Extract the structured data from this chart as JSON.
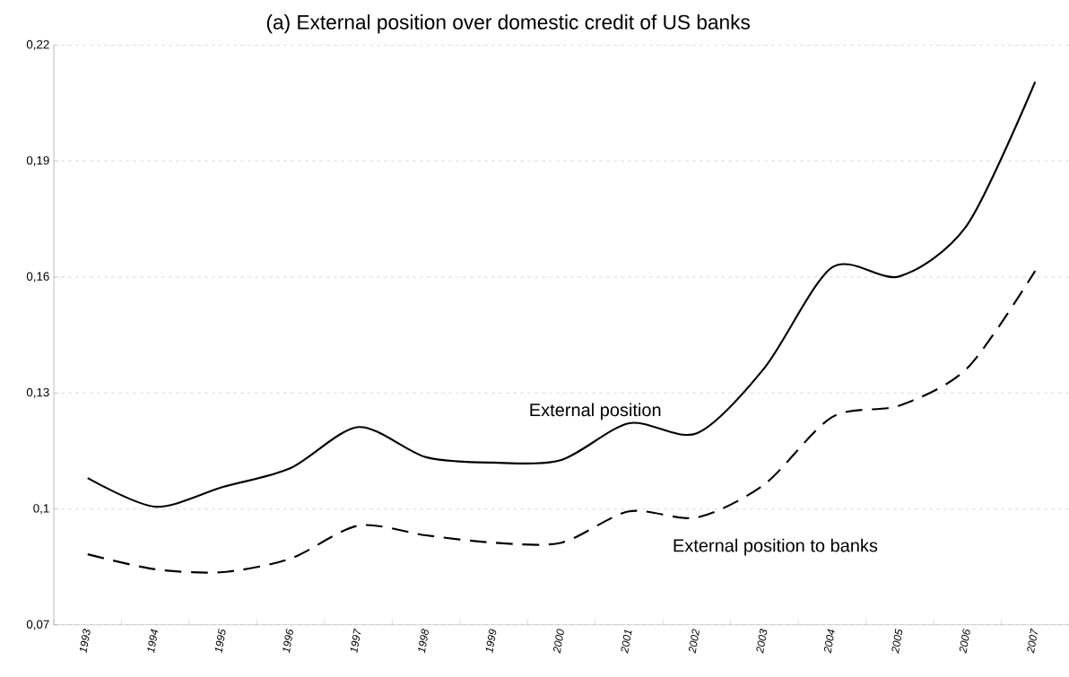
{
  "chart_data": {
    "type": "line",
    "title": "(a) External position over domestic credit of US banks",
    "categories": [
      "1993",
      "1994",
      "1995",
      "1996",
      "1997",
      "1998",
      "1999",
      "2000",
      "2001",
      "2002",
      "2003",
      "2004",
      "2005",
      "2006",
      "2007"
    ],
    "series": [
      {
        "name": "External position",
        "color": "#000000",
        "line_style": "solid",
        "values": [
          0.108,
          0.1006,
          0.1057,
          0.1106,
          0.1212,
          0.1134,
          0.112,
          0.1127,
          0.1222,
          0.1196,
          0.1365,
          0.1625,
          0.1602,
          0.1736,
          0.2105
        ]
      },
      {
        "name": "External position to banks",
        "color": "#000000",
        "line_style": "dashed",
        "values": [
          0.0883,
          0.0844,
          0.0837,
          0.0872,
          0.0957,
          0.0932,
          0.0913,
          0.0913,
          0.0994,
          0.0978,
          0.1064,
          0.1238,
          0.1268,
          0.1365,
          0.1616
        ]
      }
    ],
    "ylim": [
      0.07,
      0.22
    ],
    "yticks": [
      {
        "value": 0.07,
        "label": "0,07"
      },
      {
        "value": 0.1,
        "label": "0,1"
      },
      {
        "value": 0.13,
        "label": "0,13"
      },
      {
        "value": 0.16,
        "label": "0,16"
      },
      {
        "value": 0.19,
        "label": "0,19"
      },
      {
        "value": 0.22,
        "label": "0,22"
      }
    ],
    "grid": "y",
    "legend": false,
    "marker": "none"
  }
}
